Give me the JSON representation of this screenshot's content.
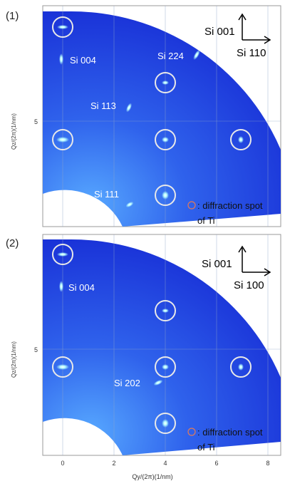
{
  "panels": [
    {
      "label": "(1)",
      "axis_up": "Si 001",
      "axis_right": "Si 110",
      "peaks": [
        "Si 004",
        "Si 224",
        "Si 113",
        "Si 111"
      ],
      "legend_line1": ": diffraction spot",
      "legend_line2": "of Ti",
      "ytick": "5",
      "ylabel": "Qz/(2π)(1/nm)"
    },
    {
      "label": "(2)",
      "axis_up": "Si 001",
      "axis_right": "Si 100",
      "peaks": [
        "Si 004",
        "Si 202"
      ],
      "legend_line1": ": diffraction spot",
      "legend_line2": "of Ti",
      "ytick": "5",
      "ylabel": "Qz/(2π)(1/nm)"
    }
  ],
  "xaxis": {
    "ticks": [
      "0",
      "2",
      "4",
      "6",
      "8"
    ],
    "label": "Qy/(2π)(1/nm)"
  },
  "colors": {
    "fan": "#1c3ee0",
    "fan_light": "#3f7bf0",
    "spot": "#b8ffff",
    "ti_circle": "#e8e8e8",
    "legend_circle": "#e07a5a"
  }
}
